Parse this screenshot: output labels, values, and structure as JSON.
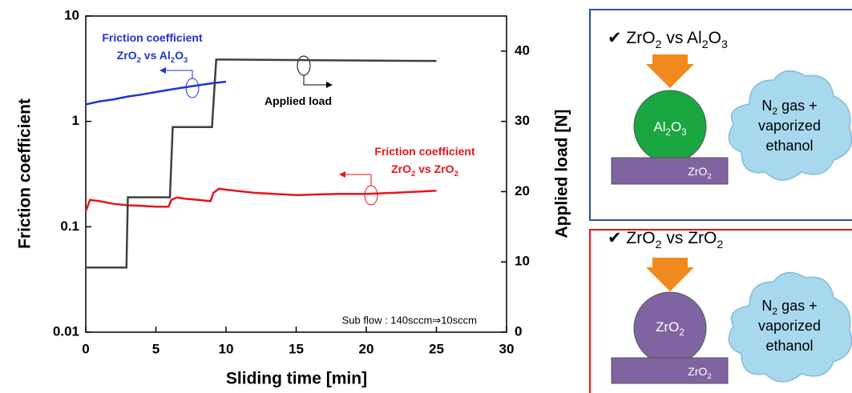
{
  "chart_data": {
    "type": "line",
    "x_label": "Sliding time [min]",
    "y_label": "Friction coefficient",
    "y2_label": "Applied load [N]",
    "xlim": [
      0,
      30
    ],
    "xticks": [
      0,
      5,
      10,
      15,
      20,
      25,
      30
    ],
    "ylim": [
      0.01,
      10
    ],
    "yticks": [
      0.01,
      0.1,
      1,
      10
    ],
    "ylog": true,
    "y2lim": [
      0,
      45
    ],
    "y2ticks": [
      0,
      10,
      20,
      30,
      40
    ],
    "series": [
      {
        "name": [
          [
            "Friction coefficient"
          ],
          [
            "ZrO",
            "2",
            " vs Al",
            "2",
            "O",
            "3"
          ]
        ],
        "color": "#1f35d0",
        "x": [
          0,
          1,
          2,
          3,
          4,
          5,
          6,
          7,
          8,
          9,
          10
        ],
        "values": [
          1.45,
          1.55,
          1.62,
          1.72,
          1.8,
          1.9,
          2.0,
          2.1,
          2.2,
          2.3,
          2.38
        ]
      },
      {
        "name": [
          [
            "Friction coefficient"
          ],
          [
            "ZrO",
            "2",
            " vs ZrO",
            "2"
          ]
        ],
        "color": "#e8141b",
        "x": [
          0,
          0.3,
          1,
          2,
          3,
          4,
          5,
          5.9,
          6.1,
          6.5,
          7,
          8,
          8.9,
          9.1,
          9.5,
          10,
          12,
          15,
          18,
          20,
          22,
          25
        ],
        "values": [
          0.14,
          0.18,
          0.175,
          0.165,
          0.16,
          0.158,
          0.155,
          0.155,
          0.18,
          0.19,
          0.185,
          0.18,
          0.175,
          0.21,
          0.23,
          0.225,
          0.21,
          0.2,
          0.205,
          0.205,
          0.21,
          0.22
        ]
      },
      {
        "name": [
          [
            "Applied load"
          ]
        ],
        "color": "#404040",
        "axis": "y2",
        "x": [
          0,
          2.9,
          3,
          6,
          6.2,
          9,
          9.3,
          9.7,
          25
        ],
        "values": [
          9.2,
          9.2,
          19.2,
          19.2,
          29.2,
          29.2,
          38.8,
          38.8,
          38.6
        ]
      }
    ],
    "note": "Sub flow : 140sccm⇒10sccm"
  },
  "panels": [
    {
      "title": [
        "✔ ZrO",
        "2",
        " vs Al",
        "2",
        "O",
        "3"
      ],
      "ball": [
        "Al",
        "2",
        "O",
        "3"
      ],
      "base": [
        "ZrO",
        "2"
      ],
      "cloud": [
        [
          "N",
          "2",
          " gas +"
        ],
        [
          "vaporized"
        ],
        [
          "ethanol"
        ]
      ]
    },
    {
      "title": [
        "✔ ZrO",
        "2",
        " vs ZrO",
        "2"
      ],
      "ball": [
        "ZrO",
        "2"
      ],
      "base": [
        "ZrO",
        "2"
      ],
      "cloud": [
        [
          "N",
          "2",
          " gas +"
        ],
        [
          "vaporized"
        ],
        [
          "ethanol"
        ]
      ]
    }
  ]
}
